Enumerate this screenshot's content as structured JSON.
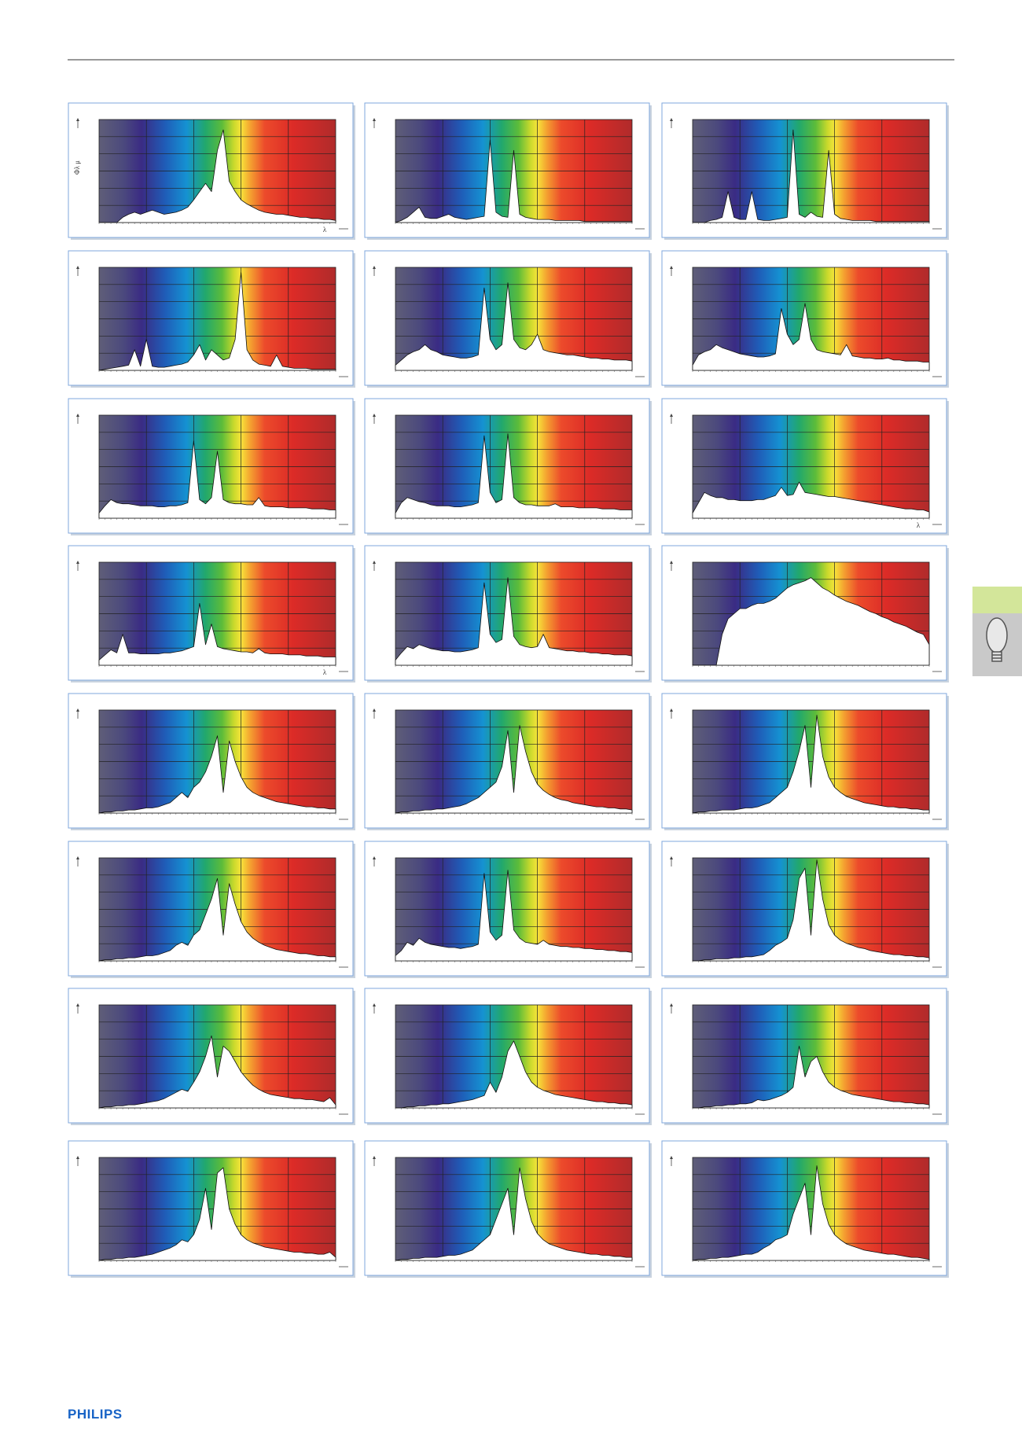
{
  "chart_data": [
    {
      "type": "area",
      "xlim": [
        380,
        780
      ],
      "ylim": [
        0,
        100
      ],
      "y_label": "Φλ μ",
      "x_label": "λ",
      "values": [
        0,
        0,
        0,
        0,
        5,
        8,
        10,
        8,
        10,
        12,
        10,
        8,
        9,
        10,
        12,
        15,
        22,
        30,
        38,
        30,
        70,
        90,
        40,
        30,
        22,
        18,
        15,
        12,
        10,
        9,
        8,
        8,
        7,
        6,
        5,
        5,
        4,
        4,
        3,
        3,
        2
      ]
    },
    {
      "type": "area",
      "xlim": [
        380,
        780
      ],
      "ylim": [
        0,
        100
      ],
      "values": [
        0,
        2,
        5,
        10,
        15,
        5,
        4,
        4,
        6,
        8,
        5,
        4,
        3,
        4,
        5,
        6,
        80,
        10,
        6,
        5,
        70,
        8,
        5,
        4,
        3,
        3,
        3,
        2,
        2,
        2,
        2,
        2,
        1,
        1,
        1,
        1,
        1,
        1,
        1,
        1,
        1
      ]
    },
    {
      "type": "area",
      "xlim": [
        380,
        780
      ],
      "ylim": [
        0,
        100
      ],
      "values": [
        0,
        0,
        0,
        2,
        3,
        5,
        30,
        5,
        3,
        3,
        30,
        3,
        2,
        2,
        3,
        4,
        5,
        90,
        8,
        5,
        10,
        6,
        5,
        70,
        8,
        4,
        3,
        2,
        2,
        2,
        2,
        1,
        1,
        1,
        1,
        1,
        1,
        1,
        1,
        1,
        1
      ]
    },
    {
      "type": "area",
      "xlim": [
        380,
        780
      ],
      "ylim": [
        0,
        100
      ],
      "values": [
        0,
        1,
        2,
        3,
        4,
        5,
        20,
        4,
        30,
        4,
        3,
        3,
        4,
        5,
        6,
        8,
        15,
        25,
        10,
        20,
        15,
        10,
        12,
        30,
        95,
        20,
        10,
        6,
        5,
        4,
        15,
        4,
        3,
        2,
        2,
        2,
        1,
        1,
        1,
        1,
        1
      ]
    },
    {
      "type": "area",
      "xlim": [
        380,
        780
      ],
      "ylim": [
        0,
        100
      ],
      "values": [
        5,
        10,
        15,
        18,
        20,
        25,
        20,
        18,
        15,
        14,
        13,
        12,
        12,
        13,
        15,
        80,
        30,
        20,
        25,
        85,
        30,
        22,
        20,
        25,
        35,
        20,
        18,
        17,
        16,
        15,
        15,
        14,
        13,
        12,
        12,
        11,
        11,
        10,
        10,
        10,
        9
      ]
    },
    {
      "type": "area",
      "xlim": [
        380,
        780
      ],
      "ylim": [
        0,
        100
      ],
      "values": [
        5,
        15,
        18,
        20,
        25,
        22,
        20,
        18,
        16,
        15,
        14,
        13,
        13,
        14,
        16,
        60,
        35,
        25,
        30,
        65,
        30,
        20,
        18,
        17,
        16,
        15,
        25,
        14,
        13,
        12,
        12,
        11,
        11,
        12,
        10,
        10,
        9,
        9,
        9,
        8,
        8
      ]
    },
    {
      "type": "area",
      "xlim": [
        380,
        780
      ],
      "ylim": [
        0,
        100
      ],
      "values": [
        5,
        12,
        18,
        15,
        14,
        14,
        13,
        12,
        12,
        12,
        11,
        11,
        12,
        12,
        13,
        15,
        75,
        18,
        14,
        20,
        65,
        18,
        15,
        14,
        14,
        13,
        13,
        20,
        12,
        11,
        11,
        11,
        10,
        10,
        10,
        10,
        9,
        9,
        9,
        8,
        8
      ]
    },
    {
      "type": "area",
      "xlim": [
        380,
        780
      ],
      "ylim": [
        0,
        100
      ],
      "values": [
        5,
        15,
        20,
        18,
        16,
        15,
        13,
        12,
        12,
        12,
        11,
        11,
        12,
        13,
        15,
        80,
        25,
        15,
        18,
        82,
        20,
        15,
        13,
        13,
        12,
        12,
        12,
        14,
        11,
        11,
        11,
        10,
        10,
        10,
        10,
        9,
        9,
        9,
        8,
        8,
        8
      ]
    },
    {
      "type": "area",
      "xlim": [
        380,
        780
      ],
      "ylim": [
        0,
        100
      ],
      "x_label": "λ",
      "values": [
        5,
        15,
        25,
        22,
        20,
        20,
        18,
        18,
        17,
        17,
        17,
        18,
        18,
        20,
        22,
        30,
        22,
        23,
        35,
        25,
        24,
        23,
        22,
        21,
        21,
        20,
        19,
        18,
        17,
        16,
        15,
        14,
        13,
        12,
        11,
        10,
        9,
        9,
        8,
        8,
        6
      ]
    },
    {
      "type": "area",
      "xlim": [
        380,
        780
      ],
      "ylim": [
        0,
        100
      ],
      "x_label": "λ",
      "values": [
        5,
        10,
        15,
        12,
        30,
        12,
        12,
        11,
        11,
        11,
        11,
        12,
        12,
        13,
        14,
        16,
        18,
        60,
        20,
        40,
        18,
        16,
        15,
        14,
        13,
        13,
        12,
        16,
        12,
        11,
        11,
        11,
        10,
        10,
        10,
        9,
        9,
        9,
        8,
        8,
        8
      ]
    },
    {
      "type": "area",
      "xlim": [
        380,
        780
      ],
      "ylim": [
        0,
        100
      ],
      "values": [
        5,
        12,
        18,
        16,
        20,
        18,
        16,
        15,
        14,
        14,
        13,
        13,
        14,
        15,
        17,
        80,
        30,
        22,
        25,
        85,
        28,
        20,
        18,
        17,
        18,
        30,
        17,
        16,
        15,
        14,
        14,
        13,
        13,
        12,
        12,
        11,
        11,
        10,
        10,
        10,
        9
      ]
    },
    {
      "type": "area",
      "xlim": [
        380,
        780
      ],
      "ylim": [
        0,
        100
      ],
      "values": [
        0,
        0,
        0,
        0,
        0,
        30,
        45,
        50,
        55,
        55,
        58,
        60,
        60,
        62,
        65,
        70,
        75,
        78,
        80,
        82,
        85,
        80,
        75,
        72,
        68,
        65,
        62,
        60,
        58,
        55,
        52,
        50,
        47,
        45,
        42,
        40,
        38,
        35,
        32,
        30,
        20
      ]
    },
    {
      "type": "area",
      "xlim": [
        380,
        780
      ],
      "ylim": [
        0,
        100
      ],
      "values": [
        0,
        1,
        1,
        2,
        2,
        3,
        3,
        4,
        5,
        5,
        6,
        8,
        10,
        15,
        20,
        15,
        25,
        30,
        40,
        55,
        75,
        20,
        70,
        50,
        35,
        25,
        20,
        17,
        15,
        13,
        11,
        10,
        9,
        8,
        7,
        6,
        6,
        5,
        5,
        4,
        4
      ]
    },
    {
      "type": "area",
      "xlim": [
        380,
        780
      ],
      "ylim": [
        0,
        100
      ],
      "values": [
        0,
        1,
        1,
        2,
        2,
        3,
        3,
        4,
        4,
        5,
        6,
        7,
        9,
        12,
        15,
        20,
        25,
        30,
        45,
        80,
        20,
        85,
        60,
        40,
        28,
        22,
        18,
        15,
        13,
        12,
        10,
        9,
        8,
        7,
        6,
        6,
        5,
        5,
        4,
        4,
        3
      ]
    },
    {
      "type": "area",
      "xlim": [
        380,
        780
      ],
      "ylim": [
        0,
        100
      ],
      "values": [
        0,
        1,
        1,
        2,
        2,
        3,
        3,
        3,
        4,
        5,
        5,
        6,
        8,
        10,
        15,
        20,
        25,
        40,
        60,
        85,
        25,
        95,
        55,
        35,
        25,
        20,
        16,
        14,
        12,
        10,
        9,
        8,
        7,
        6,
        6,
        5,
        5,
        4,
        4,
        3,
        3
      ]
    },
    {
      "type": "area",
      "xlim": [
        380,
        780
      ],
      "ylim": [
        0,
        100
      ],
      "values": [
        0,
        1,
        1,
        2,
        2,
        3,
        3,
        4,
        5,
        5,
        6,
        8,
        10,
        15,
        18,
        15,
        25,
        30,
        45,
        60,
        80,
        25,
        75,
        55,
        38,
        28,
        22,
        18,
        15,
        13,
        11,
        10,
        9,
        8,
        7,
        7,
        6,
        5,
        5,
        4,
        4
      ]
    },
    {
      "type": "area",
      "xlim": [
        380,
        780
      ],
      "ylim": [
        0,
        100
      ],
      "values": [
        5,
        10,
        18,
        15,
        22,
        18,
        16,
        15,
        14,
        13,
        13,
        12,
        13,
        14,
        16,
        85,
        28,
        20,
        25,
        88,
        30,
        22,
        18,
        17,
        16,
        20,
        16,
        15,
        14,
        14,
        13,
        13,
        12,
        12,
        11,
        11,
        10,
        10,
        9,
        9,
        8
      ]
    },
    {
      "type": "area",
      "xlim": [
        380,
        780
      ],
      "ylim": [
        0,
        100
      ],
      "values": [
        0,
        0,
        1,
        1,
        2,
        2,
        2,
        3,
        3,
        4,
        4,
        5,
        6,
        10,
        15,
        18,
        22,
        40,
        80,
        90,
        25,
        98,
        60,
        35,
        25,
        20,
        17,
        15,
        13,
        12,
        10,
        9,
        8,
        7,
        6,
        6,
        5,
        5,
        4,
        4,
        3
      ]
    },
    {
      "type": "area",
      "xlim": [
        380,
        780
      ],
      "ylim": [
        0,
        100
      ],
      "values": [
        0,
        1,
        1,
        2,
        2,
        3,
        3,
        4,
        5,
        6,
        7,
        9,
        12,
        15,
        18,
        16,
        25,
        35,
        50,
        70,
        30,
        60,
        55,
        45,
        35,
        28,
        22,
        18,
        15,
        13,
        12,
        11,
        10,
        9,
        9,
        8,
        8,
        7,
        6,
        10,
        3
      ]
    },
    {
      "type": "area",
      "xlim": [
        380,
        780
      ],
      "ylim": [
        0,
        100
      ],
      "values": [
        0,
        0,
        1,
        1,
        2,
        2,
        3,
        3,
        4,
        4,
        5,
        6,
        7,
        8,
        10,
        12,
        25,
        15,
        30,
        55,
        65,
        50,
        35,
        25,
        20,
        17,
        15,
        13,
        12,
        11,
        10,
        9,
        8,
        7,
        6,
        6,
        5,
        5,
        4,
        4,
        3
      ]
    },
    {
      "type": "area",
      "xlim": [
        380,
        780
      ],
      "ylim": [
        0,
        100
      ],
      "values": [
        0,
        0,
        1,
        1,
        2,
        2,
        3,
        3,
        4,
        4,
        5,
        8,
        7,
        8,
        10,
        12,
        15,
        20,
        60,
        30,
        45,
        50,
        35,
        25,
        20,
        17,
        15,
        13,
        12,
        11,
        10,
        9,
        8,
        7,
        6,
        6,
        5,
        5,
        4,
        4,
        3
      ]
    },
    {
      "type": "area",
      "xlim": [
        380,
        780
      ],
      "ylim": [
        0,
        100
      ],
      "values": [
        0,
        1,
        1,
        2,
        2,
        3,
        3,
        4,
        5,
        6,
        8,
        10,
        12,
        15,
        20,
        18,
        25,
        40,
        70,
        30,
        85,
        90,
        50,
        35,
        25,
        20,
        17,
        15,
        13,
        12,
        11,
        10,
        9,
        8,
        8,
        7,
        7,
        6,
        6,
        8,
        3
      ]
    },
    {
      "type": "area",
      "xlim": [
        380,
        780
      ],
      "ylim": [
        0,
        100
      ],
      "values": [
        0,
        1,
        1,
        2,
        2,
        3,
        3,
        3,
        4,
        5,
        5,
        6,
        8,
        10,
        15,
        20,
        25,
        40,
        55,
        70,
        25,
        90,
        60,
        38,
        26,
        20,
        16,
        14,
        12,
        10,
        9,
        8,
        7,
        6,
        6,
        5,
        5,
        4,
        4,
        3,
        3
      ]
    },
    {
      "type": "area",
      "xlim": [
        380,
        780
      ],
      "ylim": [
        0,
        100
      ],
      "values": [
        0,
        1,
        1,
        2,
        2,
        3,
        3,
        4,
        5,
        6,
        6,
        8,
        12,
        15,
        20,
        22,
        25,
        45,
        60,
        75,
        25,
        92,
        55,
        35,
        25,
        20,
        16,
        14,
        12,
        10,
        9,
        8,
        7,
        6,
        6,
        5,
        4,
        3,
        3,
        2,
        1
      ]
    }
  ],
  "footer": {
    "brand": "PHILIPS"
  }
}
